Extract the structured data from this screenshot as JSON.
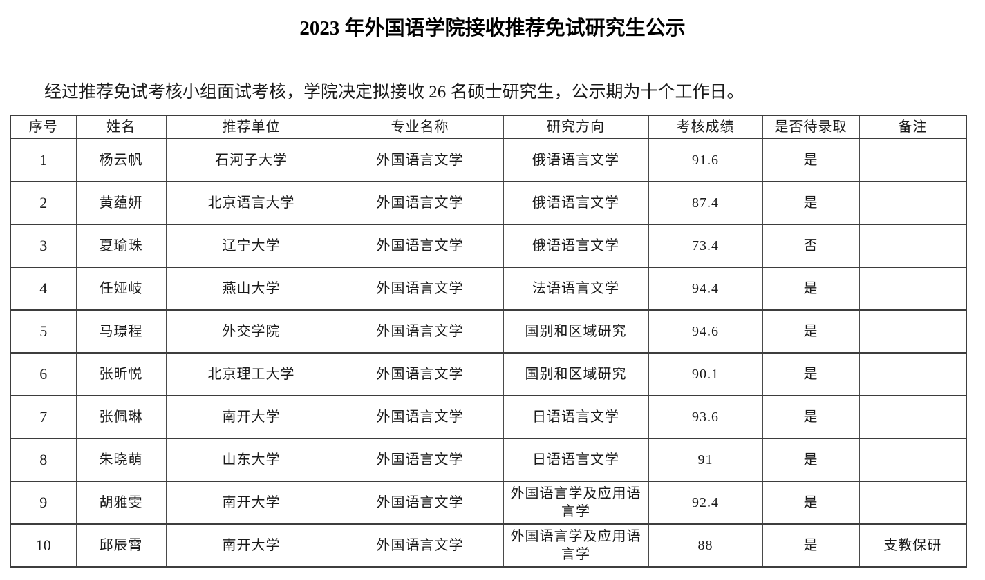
{
  "page": {
    "title": "2023 年外国语学院接收推荐免试研究生公示",
    "intro": "经过推荐免试考核小组面试考核，学院决定拟接收 26 名硕士研究生，公示期为十个工作日。"
  },
  "table": {
    "headers": [
      "序号",
      "姓名",
      "推荐单位",
      "专业名称",
      "研究方向",
      "考核成绩",
      "是否待录取",
      "备注"
    ],
    "rows": [
      [
        "1",
        "杨云帆",
        "石河子大学",
        "外国语言文学",
        "俄语语言文学",
        "91.6",
        "是",
        ""
      ],
      [
        "2",
        "黄蕴妍",
        "北京语言大学",
        "外国语言文学",
        "俄语语言文学",
        "87.4",
        "是",
        ""
      ],
      [
        "3",
        "夏瑜珠",
        "辽宁大学",
        "外国语言文学",
        "俄语语言文学",
        "73.4",
        "否",
        ""
      ],
      [
        "4",
        "任娅岐",
        "燕山大学",
        "外国语言文学",
        "法语语言文学",
        "94.4",
        "是",
        ""
      ],
      [
        "5",
        "马璟程",
        "外交学院",
        "外国语言文学",
        "国别和区域研究",
        "94.6",
        "是",
        ""
      ],
      [
        "6",
        "张昕悦",
        "北京理工大学",
        "外国语言文学",
        "国别和区域研究",
        "90.1",
        "是",
        ""
      ],
      [
        "7",
        "张佩琳",
        "南开大学",
        "外国语言文学",
        "日语语言文学",
        "93.6",
        "是",
        ""
      ],
      [
        "8",
        "朱晓萌",
        "山东大学",
        "外国语言文学",
        "日语语言文学",
        "91",
        "是",
        ""
      ],
      [
        "9",
        "胡雅雯",
        "南开大学",
        "外国语言文学",
        "外国语言学及应用语言学",
        "92.4",
        "是",
        ""
      ],
      [
        "10",
        "邱辰霄",
        "南开大学",
        "外国语言文学",
        "外国语言学及应用语言学",
        "88",
        "是",
        "支教保研"
      ]
    ]
  },
  "colors": {
    "text": "#1a1a1a",
    "table_border": "#3d3d3d",
    "background": "#ffffff"
  }
}
